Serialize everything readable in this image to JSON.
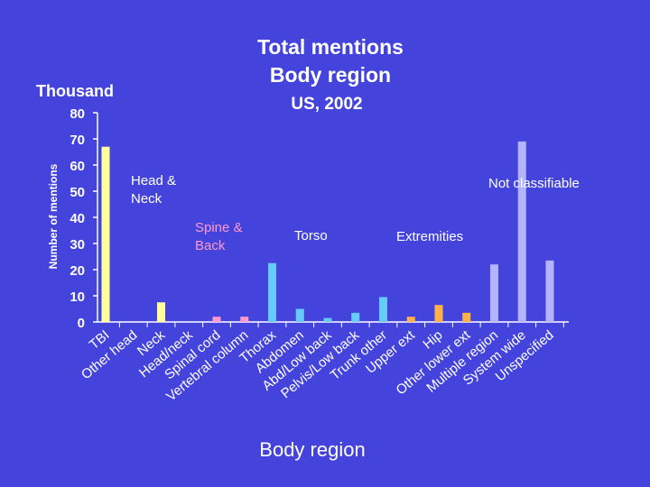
{
  "chart_data": {
    "type": "bar",
    "title": [
      "Total mentions",
      "Body region"
    ],
    "subtitle": "US, 2002",
    "unit_label": "Thousand",
    "y_label": "Number of mentions",
    "x_label": "Body region",
    "categories": [
      "TBI",
      "Other head",
      "Neck",
      "Head/neck",
      "Spinal cord",
      "Vertebral column",
      "Thorax",
      "Abdomen",
      "Abd/Low back",
      "Pelvis/Low back",
      "Trunk other",
      "Upper ext",
      "Hip",
      "Other lower ext",
      "Multiple region",
      "System wide",
      "Unspecified"
    ],
    "values": [
      67,
      0,
      7.5,
      0,
      2,
      2,
      22.5,
      5,
      1.5,
      3.5,
      9.5,
      2,
      6.5,
      3.5,
      22,
      69,
      23.5
    ],
    "colors": [
      "#ffff99",
      "#ffff99",
      "#ffff99",
      "#ffff99",
      "#ff99cc",
      "#ff99cc",
      "#66ccff",
      "#66ccff",
      "#66ccff",
      "#66ccff",
      "#66ccff",
      "#ffb347",
      "#ffb347",
      "#ffb347",
      "#b3b3ff",
      "#b3b3ff",
      "#b3b3ff"
    ],
    "annotations": [
      {
        "text": [
          "Head &",
          "Neck"
        ],
        "color": "#ffffff"
      },
      {
        "text": [
          "Spine &",
          "Back"
        ],
        "color": "#ff99cc"
      },
      {
        "text": [
          "Torso"
        ],
        "color": "#ffffff"
      },
      {
        "text": [
          "Extremities"
        ],
        "color": "#ffffff"
      },
      {
        "text": [
          "Not classifiable"
        ],
        "color": "#ffffff"
      }
    ],
    "ylim": [
      0,
      80
    ],
    "yticks": [
      0,
      10,
      20,
      30,
      40,
      50,
      60,
      70,
      80
    ]
  }
}
